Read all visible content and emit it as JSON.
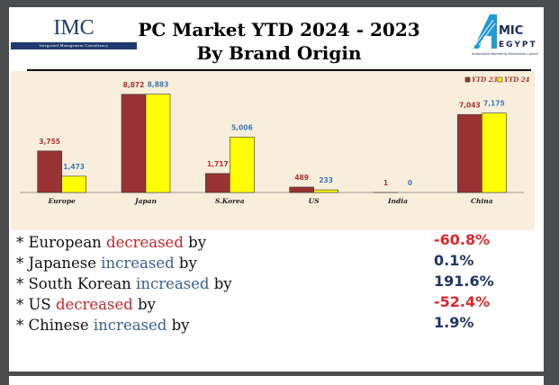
{
  "header": {
    "logo_left": {
      "name": "IMC",
      "tagline": "Integrated Management Consultancy"
    },
    "title_line1": "PC Market YTD 2024 - 2023",
    "title_line2": "By Brand Origin",
    "logo_right": {
      "name": "AMIC EGYPT",
      "tagline": "Automotive Marketing Information Council"
    }
  },
  "chart_data": {
    "type": "bar",
    "title": "PC Market YTD 2024 - 2023 By Brand Origin",
    "categories": [
      "Europe",
      "Japan",
      "S.Korea",
      "US",
      "India",
      "China"
    ],
    "series": [
      {
        "name": "YTD 23",
        "color": "#993333",
        "values": [
          3755,
          8872,
          1717,
          489,
          1,
          7043
        ]
      },
      {
        "name": "YTD 24",
        "color": "#ffff00",
        "values": [
          1473,
          8883,
          5006,
          233,
          0,
          7175
        ]
      }
    ],
    "value_labels": [
      [
        "3,755",
        "8,872",
        "1,717",
        "489",
        "1",
        "7,043"
      ],
      [
        "1,473",
        "8,883",
        "5,006",
        "233",
        "0",
        "7,175"
      ]
    ],
    "ylim": [
      0,
      10000
    ],
    "legend": "top-right",
    "grid": false
  },
  "stats": [
    {
      "prefix": "* European ",
      "verb": "decreased",
      "suffix": " by",
      "value": "-60.8%",
      "dir": "down"
    },
    {
      "prefix": "* Japanese ",
      "verb": "increased",
      "suffix": " by",
      "value": "0.1%",
      "dir": "up"
    },
    {
      "prefix": "* South Korean ",
      "verb": "increased",
      "suffix": " by",
      "value": "191.6%",
      "dir": "up"
    },
    {
      "prefix": "* US ",
      "verb": "decreased",
      "suffix": " by",
      "value": "-52.4%",
      "dir": "down"
    },
    {
      "prefix": "* Chinese ",
      "verb": "increased",
      "suffix": " by",
      "value": "1.9%",
      "dir": "up"
    }
  ],
  "colors": {
    "down": "#e0262b",
    "up": "#1f3468",
    "verb_down": "#c0282d",
    "verb_up": "#3a5f8f"
  }
}
